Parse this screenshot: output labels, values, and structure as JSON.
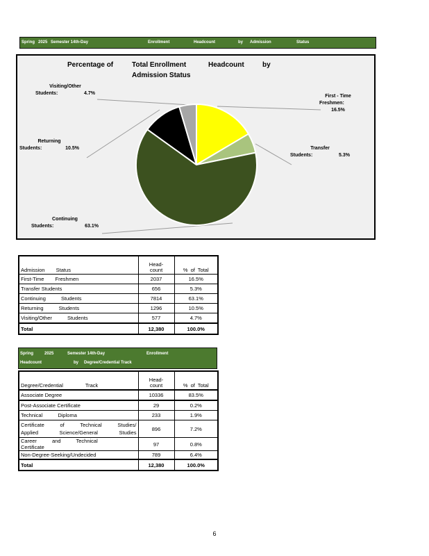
{
  "colors": {
    "header_green": "#4C7A2F",
    "chart_background": "#F0F0F0",
    "pie_yellow": "#FFFF00",
    "pie_light_green": "#A9C47E",
    "pie_dark_green": "#3C511F",
    "pie_black": "#000000",
    "pie_gray": "#A6A6A6"
  },
  "header_bar1": {
    "words": [
      "Spring",
      "2025",
      "Semester 14th-Day",
      "Enrollment",
      "Headcount",
      "by",
      "Admission",
      "Status"
    ]
  },
  "chart": {
    "title_words_line1": [
      "Percentage of",
      "Total Enrollment",
      "Headcount",
      "by"
    ],
    "title_line2": "Admission Status",
    "callouts": {
      "visiting": {
        "title": "Visiting/Other",
        "label": "Students:",
        "value": "4.7%"
      },
      "first_time": {
        "title": "First - Time",
        "label": "Freshmen:",
        "value": "16.5%"
      },
      "transfer": {
        "title": "Transfer",
        "label": "Students:",
        "value": "5.3%"
      },
      "returning": {
        "title": "Returning",
        "label": "Students:",
        "value": "10.5%"
      },
      "continuing": {
        "title": "Continuing",
        "label": "Students:",
        "value": "63.1%"
      }
    }
  },
  "chart_data": {
    "type": "pie",
    "title": "Percentage of Total Enrollment Headcount by Admission Status",
    "start_angle_deg": 0,
    "direction": "clockwise",
    "legend": "none",
    "slices": [
      {
        "label": "First-Time Freshmen",
        "pct": 16.5,
        "headcount": 2037,
        "color": "#FFFF00"
      },
      {
        "label": "Transfer Students",
        "pct": 5.3,
        "headcount": 656,
        "color": "#A9C47E"
      },
      {
        "label": "Continuing Students",
        "pct": 63.1,
        "headcount": 7814,
        "color": "#3C511F"
      },
      {
        "label": "Returning Students",
        "pct": 10.5,
        "headcount": 1296,
        "color": "#000000"
      },
      {
        "label": "Visiting/Other Students",
        "pct": 4.7,
        "headcount": 577,
        "color": "#A6A6A6"
      }
    ]
  },
  "table1": {
    "header": {
      "col1": "Admission Status",
      "col2_line1": "Head-",
      "col2_line2": "count",
      "col3": "% of Total"
    },
    "rows": [
      {
        "label": "First-Time Freshmen",
        "headcount": "2037",
        "pct": "16.5%"
      },
      {
        "label": "Transfer Students",
        "headcount": "656",
        "pct": "5.3%"
      },
      {
        "label": "Continuing Students",
        "headcount": "7814",
        "pct": "63.1%"
      },
      {
        "label": "Returning Students",
        "headcount": "1296",
        "pct": "10.5%"
      },
      {
        "label": "Visiting/Other Students",
        "headcount": "577",
        "pct": "4.7%"
      }
    ],
    "total": {
      "label": "Total",
      "headcount": "12,380",
      "pct": "100.0%"
    }
  },
  "header_bar2": {
    "line1_words": [
      "Spring",
      "2025",
      "Semester 14th-Day",
      "Enrollment"
    ],
    "line2_words": [
      "Headcount",
      "by",
      "Degree/Credential Track"
    ]
  },
  "table2": {
    "header": {
      "col1": "Degree/Credential Track",
      "col2_line1": "Head-",
      "col2_line2": "count",
      "col3": "% of Total"
    },
    "rows": [
      {
        "label": "Associate Degree",
        "headcount": "10336",
        "pct": "83.5%"
      },
      {
        "label": "Post-Associate Certificate",
        "headcount": "29",
        "pct": "0.2%"
      },
      {
        "label": "Technical Diploma",
        "headcount": "233",
        "pct": "1.9%"
      },
      {
        "label1": "Certificate of Technical Studies/",
        "label2": "Applied Science/General Studies",
        "headcount": "896",
        "pct": "7.2%"
      },
      {
        "label": "Career and Technical Certificate",
        "headcount": "97",
        "pct": "0.8%"
      },
      {
        "label": "Non-Degree-Seeking/Undecided",
        "headcount": "789",
        "pct": "6.4%"
      }
    ],
    "total": {
      "label": "Total",
      "headcount": "12,380",
      "pct": "100.0%"
    }
  },
  "footer": {
    "page_number": "6"
  }
}
